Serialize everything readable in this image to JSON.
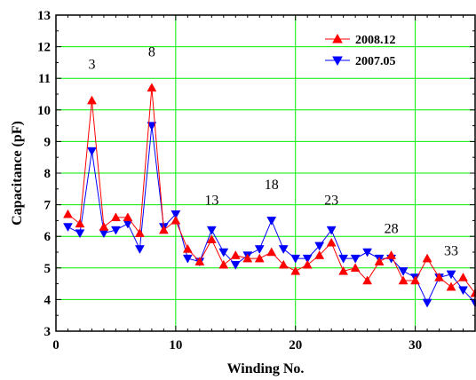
{
  "chart_data": {
    "type": "line",
    "xlabel": "Winding No.",
    "ylabel": "Capacitance (pF)",
    "xlim": [
      0,
      35
    ],
    "ylim": [
      3,
      13
    ],
    "x_ticks": [
      0,
      10,
      20,
      30
    ],
    "y_ticks": [
      3,
      4,
      5,
      6,
      7,
      8,
      9,
      10,
      11,
      12,
      13
    ],
    "grid": "vertical",
    "legend_position": "top-right",
    "x": [
      1,
      2,
      3,
      4,
      5,
      6,
      7,
      8,
      9,
      10,
      11,
      12,
      13,
      14,
      15,
      16,
      17,
      18,
      19,
      20,
      21,
      22,
      23,
      24,
      25,
      26,
      27,
      28,
      29,
      30,
      31,
      32,
      33,
      34,
      35
    ],
    "series": [
      {
        "name": "2008.12",
        "color": "#ff0000",
        "marker": "triangle-up",
        "values": [
          6.7,
          6.4,
          10.3,
          6.3,
          6.6,
          6.6,
          6.1,
          10.7,
          6.2,
          6.5,
          5.6,
          5.2,
          5.9,
          5.1,
          5.4,
          5.3,
          5.3,
          5.5,
          5.1,
          4.9,
          5.1,
          5.4,
          5.8,
          4.9,
          5.0,
          4.6,
          5.2,
          5.4,
          4.6,
          4.6,
          5.3,
          4.7,
          4.4,
          4.7,
          4.2
        ]
      },
      {
        "name": "2007.05",
        "color": "#0000ff",
        "marker": "triangle-down",
        "values": [
          6.3,
          6.1,
          8.7,
          6.1,
          6.2,
          6.4,
          5.6,
          9.5,
          6.3,
          6.7,
          5.3,
          5.2,
          6.2,
          5.5,
          5.1,
          5.4,
          5.6,
          6.5,
          5.6,
          5.3,
          5.3,
          5.7,
          6.2,
          5.3,
          5.3,
          5.5,
          5.3,
          5.3,
          4.9,
          4.7,
          3.9,
          4.7,
          4.8,
          4.3,
          3.9
        ]
      }
    ],
    "annotations": [
      {
        "text": "3",
        "x": 3,
        "y": 11.3
      },
      {
        "text": "8",
        "x": 8,
        "y": 11.7
      },
      {
        "text": "13",
        "x": 13,
        "y": 7.0
      },
      {
        "text": "18",
        "x": 18,
        "y": 7.5
      },
      {
        "text": "23",
        "x": 23,
        "y": 7.0
      },
      {
        "text": "28",
        "x": 28,
        "y": 6.1
      },
      {
        "text": "33",
        "x": 33,
        "y": 5.4
      }
    ]
  }
}
